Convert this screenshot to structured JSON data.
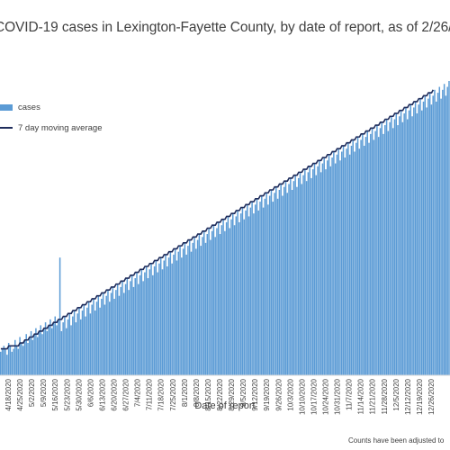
{
  "chart_data": {
    "type": "bar",
    "title": "COVID-19 cases in Lexington-Fayette County, by date of report, as of 2/26/",
    "xlabel": "Date of report",
    "ylabel": "",
    "note": "Counts have been adjusted to",
    "grid": false,
    "legend_position": "top-left",
    "tick_labels": [
      "4/18/2020",
      "4/25/2020",
      "5/2/2020",
      "5/9/2020",
      "5/16/2020",
      "5/23/2020",
      "5/30/2020",
      "6/6/2020",
      "6/13/2020",
      "6/20/2020",
      "6/27/2020",
      "7/4/2020",
      "7/11/2020",
      "7/18/2020",
      "7/25/2020",
      "8/1/2020",
      "8/8/2020",
      "8/15/2020",
      "8/22/2020",
      "8/29/2020",
      "9/5/2020",
      "9/12/2020",
      "9/19/2020",
      "9/26/2020",
      "10/3/2020",
      "10/10/2020",
      "10/17/2020",
      "10/24/2020",
      "10/31/2020",
      "11/7/2020",
      "11/14/2020",
      "11/21/2020",
      "11/28/2020",
      "12/5/2020",
      "12/12/2020",
      "12/19/2020",
      "12/26/2020"
    ],
    "series": [
      {
        "name": "cases",
        "kind": "bar",
        "color": "#5b9bd5",
        "values": [
          8,
          9,
          10,
          9,
          7,
          11,
          10,
          8,
          9,
          12,
          10,
          9,
          13,
          11,
          10,
          12,
          14,
          11,
          13,
          15,
          12,
          14,
          16,
          13,
          15,
          17,
          14,
          16,
          18,
          15,
          17,
          19,
          16,
          18,
          20,
          17,
          19,
          40,
          15,
          18,
          20,
          16,
          19,
          21,
          17,
          20,
          22,
          18,
          21,
          23,
          19,
          22,
          24,
          20,
          23,
          25,
          21,
          24,
          26,
          22,
          25,
          27,
          23,
          26,
          28,
          24,
          27,
          29,
          25,
          28,
          30,
          26,
          29,
          31,
          27,
          30,
          32,
          28,
          31,
          33,
          29,
          32,
          34,
          30,
          33,
          35,
          31,
          34,
          36,
          32,
          35,
          37,
          33,
          36,
          38,
          34,
          37,
          39,
          35,
          38,
          40,
          36,
          39,
          41,
          37,
          40,
          42,
          38,
          41,
          43,
          39,
          42,
          44,
          40,
          43,
          45,
          41,
          44,
          46,
          42,
          45,
          47,
          43,
          46,
          48,
          44,
          47,
          49,
          45,
          48,
          50,
          46,
          49,
          51,
          47,
          50,
          52,
          48,
          51,
          53,
          49,
          52,
          54,
          50,
          53,
          55,
          51,
          54,
          56,
          52,
          55,
          57,
          53,
          56,
          58,
          54,
          57,
          59,
          55,
          58,
          60,
          56,
          59,
          61,
          57,
          60,
          62,
          58,
          61,
          63,
          59,
          62,
          64,
          60,
          63,
          65,
          61,
          64,
          66,
          62,
          65,
          67,
          63,
          66,
          68,
          64,
          67,
          69,
          65,
          68,
          70,
          66,
          69,
          71,
          67,
          70,
          72,
          68,
          71,
          73,
          69,
          72,
          74,
          70,
          73,
          75,
          71,
          74,
          76,
          72,
          75,
          77,
          73,
          76,
          78,
          74,
          77,
          79,
          75,
          78,
          80,
          76,
          79,
          81,
          77,
          80,
          82,
          78,
          81,
          83,
          79,
          82,
          84,
          80,
          83,
          85,
          81,
          84,
          86,
          82,
          85,
          87,
          83,
          86,
          88,
          84,
          87,
          89,
          85,
          88,
          90,
          86,
          89,
          91,
          87,
          90,
          92,
          88,
          91,
          93,
          89,
          92,
          94,
          90,
          93,
          95,
          91,
          94,
          96,
          92,
          95,
          97,
          93,
          96,
          98,
          94,
          97,
          99,
          95,
          98,
          100
        ]
      },
      {
        "name": "7 day moving average",
        "kind": "line",
        "color": "#1f2d5c",
        "values": [
          9,
          9,
          9,
          9,
          9,
          10,
          10,
          10,
          10,
          10,
          10,
          10,
          11,
          11,
          11,
          12,
          12,
          12,
          13,
          13,
          13,
          14,
          14,
          14,
          15,
          15,
          15,
          16,
          16,
          16,
          17,
          17,
          17,
          18,
          18,
          18,
          19,
          19,
          19,
          20,
          20,
          20,
          21,
          21,
          21,
          22,
          22,
          22,
          23,
          23,
          23,
          24,
          24,
          24,
          25,
          25,
          25,
          26,
          26,
          26,
          27,
          27,
          27,
          28,
          28,
          28,
          29,
          29,
          29,
          30,
          30,
          30,
          31,
          31,
          31,
          32,
          32,
          32,
          33,
          33,
          33,
          34,
          34,
          34,
          35,
          35,
          35,
          36,
          36,
          36,
          37,
          37,
          37,
          38,
          38,
          38,
          39,
          39,
          39,
          40,
          40,
          40,
          41,
          41,
          41,
          42,
          42,
          42,
          43,
          43,
          43,
          44,
          44,
          44,
          45,
          45,
          45,
          46,
          46,
          46,
          47,
          47,
          47,
          48,
          48,
          48,
          49,
          49,
          49,
          50,
          50,
          50,
          51,
          51,
          51,
          52,
          52,
          52,
          53,
          53,
          53,
          54,
          54,
          54,
          55,
          55,
          55,
          56,
          56,
          56,
          57,
          57,
          57,
          58,
          58,
          58,
          59,
          59,
          59,
          60,
          60,
          60,
          61,
          61,
          61,
          62,
          62,
          62,
          63,
          63,
          63,
          64,
          64,
          64,
          65,
          65,
          65,
          66,
          66,
          66,
          67,
          67,
          67,
          68,
          68,
          68,
          69,
          69,
          69,
          70,
          70,
          70,
          71,
          71,
          71,
          72,
          72,
          72,
          73,
          73,
          73,
          74,
          74,
          74,
          75,
          75,
          75,
          76,
          76,
          76,
          77,
          77,
          77,
          78,
          78,
          78,
          79,
          79,
          79,
          80,
          80,
          80,
          81,
          81,
          81,
          82,
          82,
          82,
          83,
          83,
          83,
          84,
          84,
          84,
          85,
          85,
          85,
          86,
          86,
          86,
          87,
          87,
          87,
          88,
          88,
          88,
          89,
          89,
          89,
          90,
          90,
          90,
          91,
          91,
          91,
          92,
          92,
          92,
          93,
          93,
          93,
          94,
          94,
          94,
          95,
          95,
          95,
          96,
          96,
          96,
          97
        ]
      }
    ]
  }
}
